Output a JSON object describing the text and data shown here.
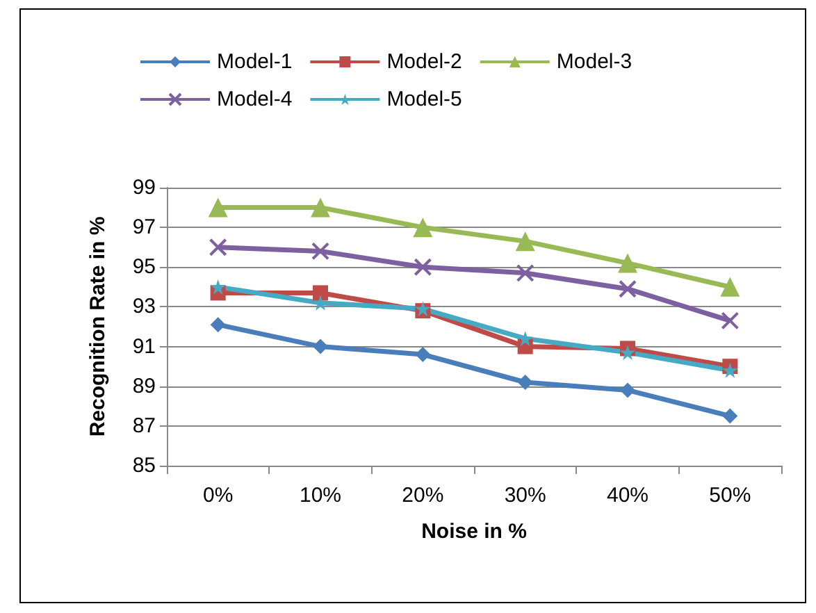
{
  "chart_data": {
    "type": "line",
    "xlabel": "Noise in %",
    "ylabel": "Recognition Rate in %",
    "categories": [
      "0%",
      "10%",
      "20%",
      "30%",
      "40%",
      "50%"
    ],
    "ylim": [
      85,
      99
    ],
    "yticks": [
      85,
      87,
      89,
      91,
      93,
      95,
      97,
      99
    ],
    "grid": "y",
    "legend": "top",
    "series": [
      {
        "name": "Model-1",
        "color": "#4a7ebb",
        "marker": "diamond",
        "values": [
          92.1,
          91.0,
          90.6,
          89.2,
          88.8,
          87.5
        ]
      },
      {
        "name": "Model-2",
        "color": "#be4b48",
        "marker": "square",
        "values": [
          93.7,
          93.7,
          92.8,
          91.0,
          90.9,
          90.0
        ]
      },
      {
        "name": "Model-3",
        "color": "#98b954",
        "marker": "triangle",
        "values": [
          98,
          98,
          97,
          96.3,
          95.2,
          94
        ]
      },
      {
        "name": "Model-4",
        "color": "#7d60a0",
        "marker": "cross",
        "values": [
          96,
          95.8,
          95,
          94.7,
          93.9,
          92.3
        ]
      },
      {
        "name": "Model-5",
        "color": "#46aac5",
        "marker": "star",
        "values": [
          94,
          93.2,
          92.9,
          91.4,
          90.7,
          89.8
        ]
      }
    ]
  }
}
